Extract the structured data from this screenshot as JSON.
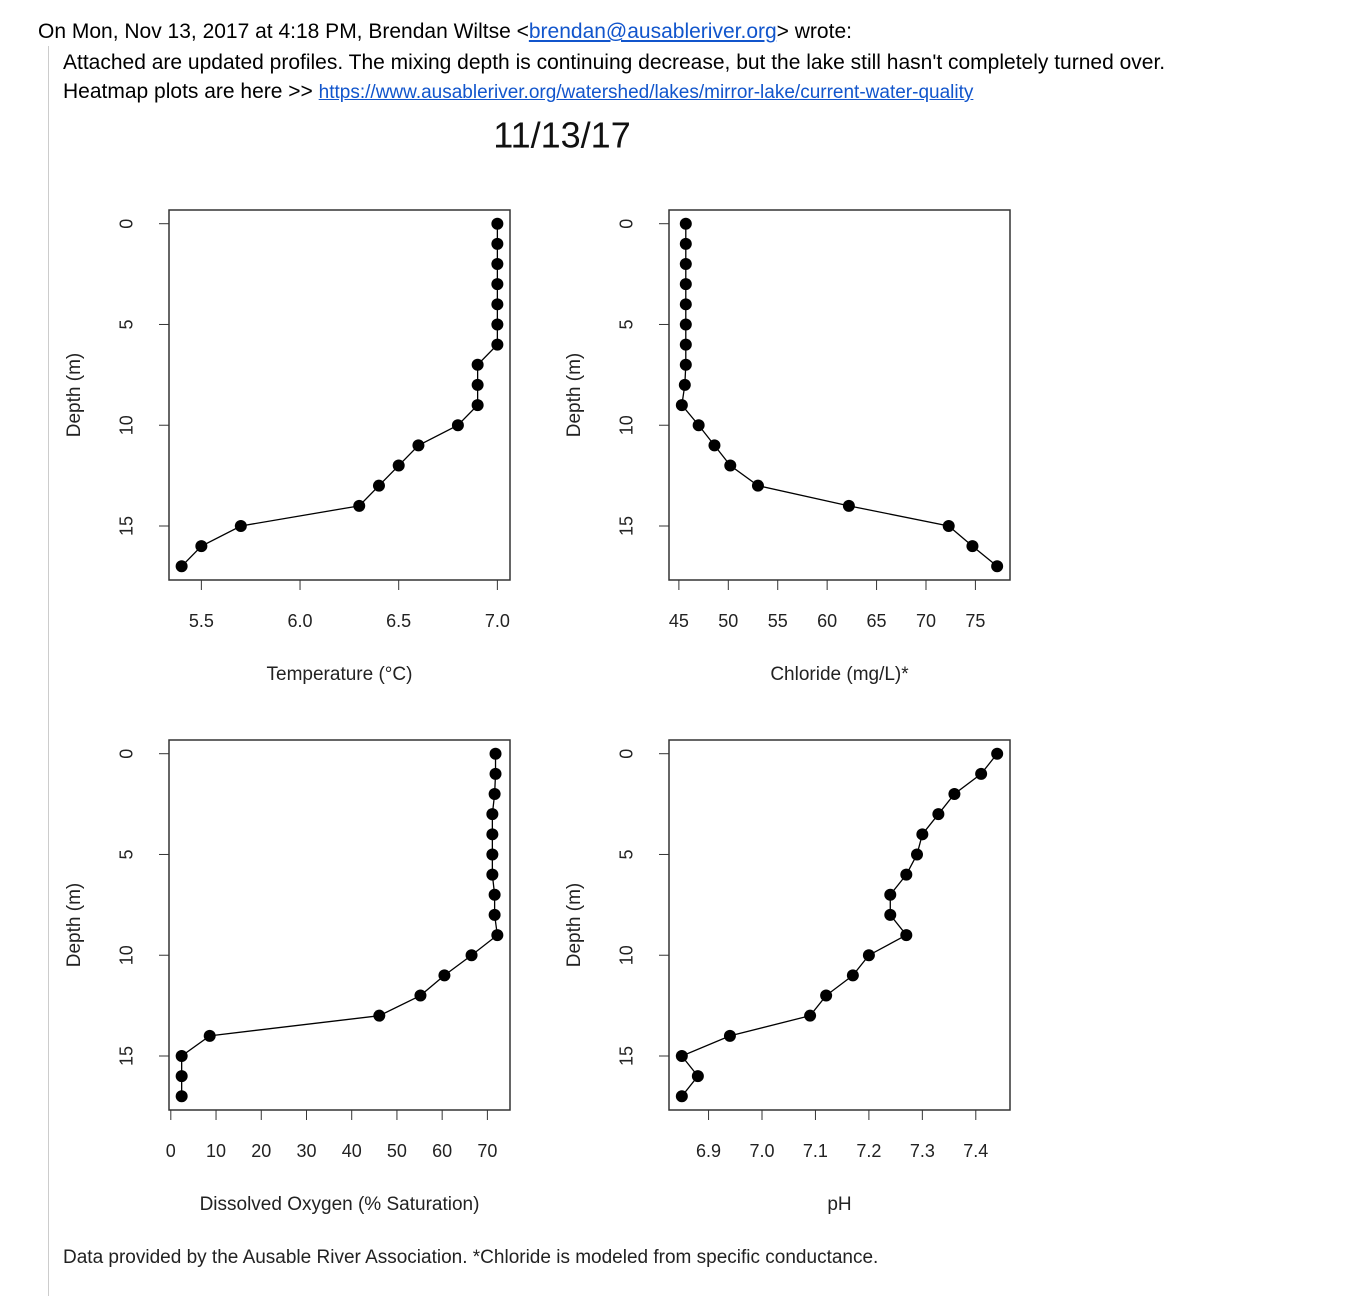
{
  "email": {
    "header_prefix": "On Mon, Nov 13, 2017 at 4:18 PM, Brendan Wiltse <",
    "sender_email": "brendan@ausableriver.org",
    "header_suffix": "> wrote:",
    "body_line": "Attached are updated profiles. The mixing depth is continuing decrease, but the lake still hasn't completely turned over.",
    "heatmap_prefix": "Heatmap plots are here >>",
    "link": "https://www.ausableriver.org/watershed/lakes/mirror-lake/current-water-quality"
  },
  "figure_title": "11/13/17",
  "chart_data": [
    {
      "type": "line",
      "xlabel": "Temperature (°C)",
      "ylabel": "Depth (m)",
      "color": "#000000",
      "x": [
        7.0,
        7.0,
        7.0,
        7.0,
        7.0,
        7.0,
        7.0,
        6.9,
        6.9,
        6.9,
        6.8,
        6.6,
        6.5,
        6.4,
        6.3,
        5.7,
        5.5,
        5.4
      ],
      "y": [
        0,
        1,
        2,
        3,
        4,
        5,
        6,
        7,
        8,
        9,
        10,
        11,
        12,
        13,
        14,
        15,
        16,
        17
      ],
      "xlim": [
        5.336,
        7.064
      ],
      "ylim": [
        17.68,
        -0.68
      ],
      "xticks": [
        5.5,
        {
          "value": 6,
          "label": "6.0"
        },
        6.5,
        {
          "value": 7,
          "label": "7.0"
        }
      ],
      "yticks": [
        0,
        5,
        10,
        15
      ]
    },
    {
      "type": "line",
      "xlabel": "Chloride (mg/L)*",
      "ylabel": "Depth (m)",
      "color": "#000000",
      "x": [
        45.7,
        45.7,
        45.7,
        45.7,
        45.7,
        45.7,
        45.7,
        45.7,
        45.6,
        45.3,
        47.0,
        48.6,
        50.2,
        53.0,
        62.2,
        72.3,
        74.7,
        77.2
      ],
      "y": [
        0,
        1,
        2,
        3,
        4,
        5,
        6,
        7,
        8,
        9,
        10,
        11,
        12,
        13,
        14,
        15,
        16,
        17
      ],
      "xlim": [
        44.0,
        78.5
      ],
      "ylim": [
        17.68,
        -0.68
      ],
      "xticks": [
        45,
        50,
        55,
        60,
        65,
        70,
        75
      ],
      "yticks": [
        0,
        5,
        10,
        15
      ]
    },
    {
      "type": "line",
      "xlabel": "Dissolved Oxygen (% Saturation)",
      "ylabel": "Depth (m)",
      "color": "#000000",
      "x": [
        71.8,
        71.8,
        71.6,
        71.1,
        71.1,
        71.1,
        71.1,
        71.6,
        71.6,
        72.2,
        66.5,
        60.5,
        55.2,
        46.1,
        8.6,
        2.4,
        2.4,
        2.4
      ],
      "y": [
        0,
        1,
        2,
        3,
        4,
        5,
        6,
        7,
        8,
        9,
        10,
        11,
        12,
        13,
        14,
        15,
        16,
        17
      ],
      "xlim": [
        -0.4,
        75.0
      ],
      "ylim": [
        17.68,
        -0.68
      ],
      "xticks": [
        0,
        10,
        20,
        30,
        40,
        50,
        60,
        70
      ],
      "yticks": [
        0,
        5,
        10,
        15
      ]
    },
    {
      "type": "line",
      "xlabel": "pH",
      "ylabel": "Depth (m)",
      "color": "#000000",
      "x": [
        7.44,
        7.41,
        7.36,
        7.33,
        7.3,
        7.29,
        7.27,
        7.24,
        7.24,
        7.27,
        7.2,
        7.17,
        7.12,
        7.09,
        6.94,
        6.85,
        6.88,
        6.85
      ],
      "y": [
        0,
        1,
        2,
        3,
        4,
        5,
        6,
        7,
        8,
        9,
        10,
        11,
        12,
        13,
        14,
        15,
        16,
        17
      ],
      "xlim": [
        6.826,
        7.464
      ],
      "ylim": [
        17.68,
        -0.68
      ],
      "xticks": [
        6.9,
        {
          "value": 7,
          "label": "7.0"
        },
        7.1,
        7.2,
        7.3,
        7.4
      ],
      "yticks": [
        0,
        5,
        10,
        15
      ]
    }
  ],
  "footnote": "Data provided by the Ausable River Association. *Chloride is modeled from specific conductance."
}
